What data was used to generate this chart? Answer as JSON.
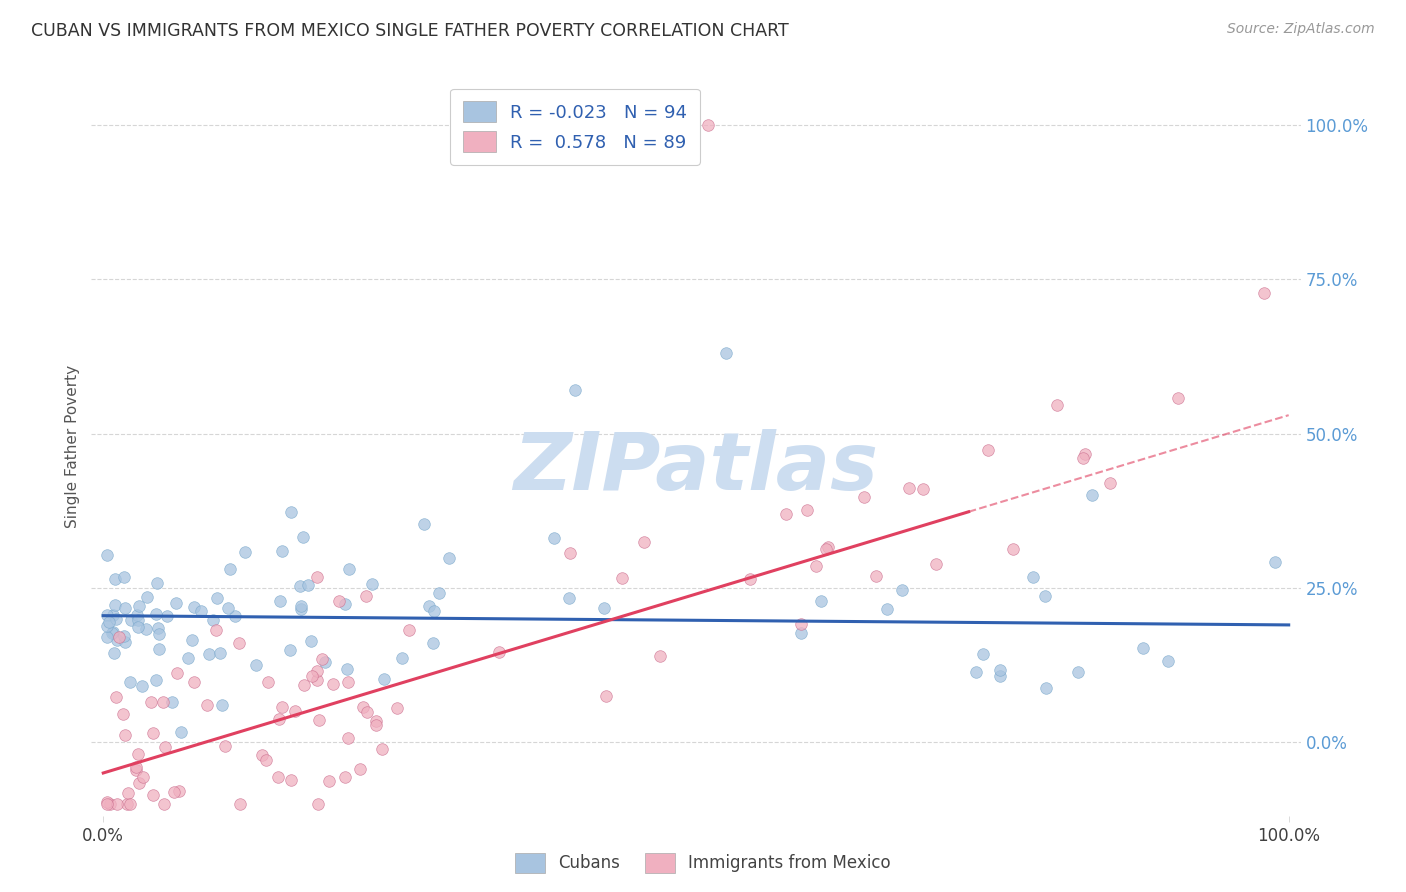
{
  "title": "CUBAN VS IMMIGRANTS FROM MEXICO SINGLE FATHER POVERTY CORRELATION CHART",
  "source": "Source: ZipAtlas.com",
  "ylabel": "Single Father Poverty",
  "legend_label1": "Cubans",
  "legend_label2": "Immigrants from Mexico",
  "r1": -0.023,
  "n1": 94,
  "r2": 0.578,
  "n2": 89,
  "color_blue": "#a8c4e0",
  "color_pink": "#f0b0c0",
  "color_blue_line": "#3060b0",
  "color_pink_line": "#e04060",
  "color_ytick": "#5b9bd5",
  "color_grid": "#cccccc",
  "watermark_color": "#ccddf0",
  "blue_trend_intercept": 20.5,
  "blue_trend_slope": -0.015,
  "pink_trend_intercept": -5.0,
  "pink_trend_slope": 0.58,
  "xlim_min": -1,
  "xlim_max": 101,
  "ylim_min": -12,
  "ylim_max": 108,
  "yticks": [
    0,
    25,
    50,
    75,
    100
  ],
  "ytick_labels": [
    "0.0%",
    "25.0%",
    "50.0%",
    "75.0%",
    "100.0%"
  ],
  "xtick_labels": [
    "0.0%",
    "100.0%"
  ],
  "xtick_positions": [
    0,
    100
  ]
}
